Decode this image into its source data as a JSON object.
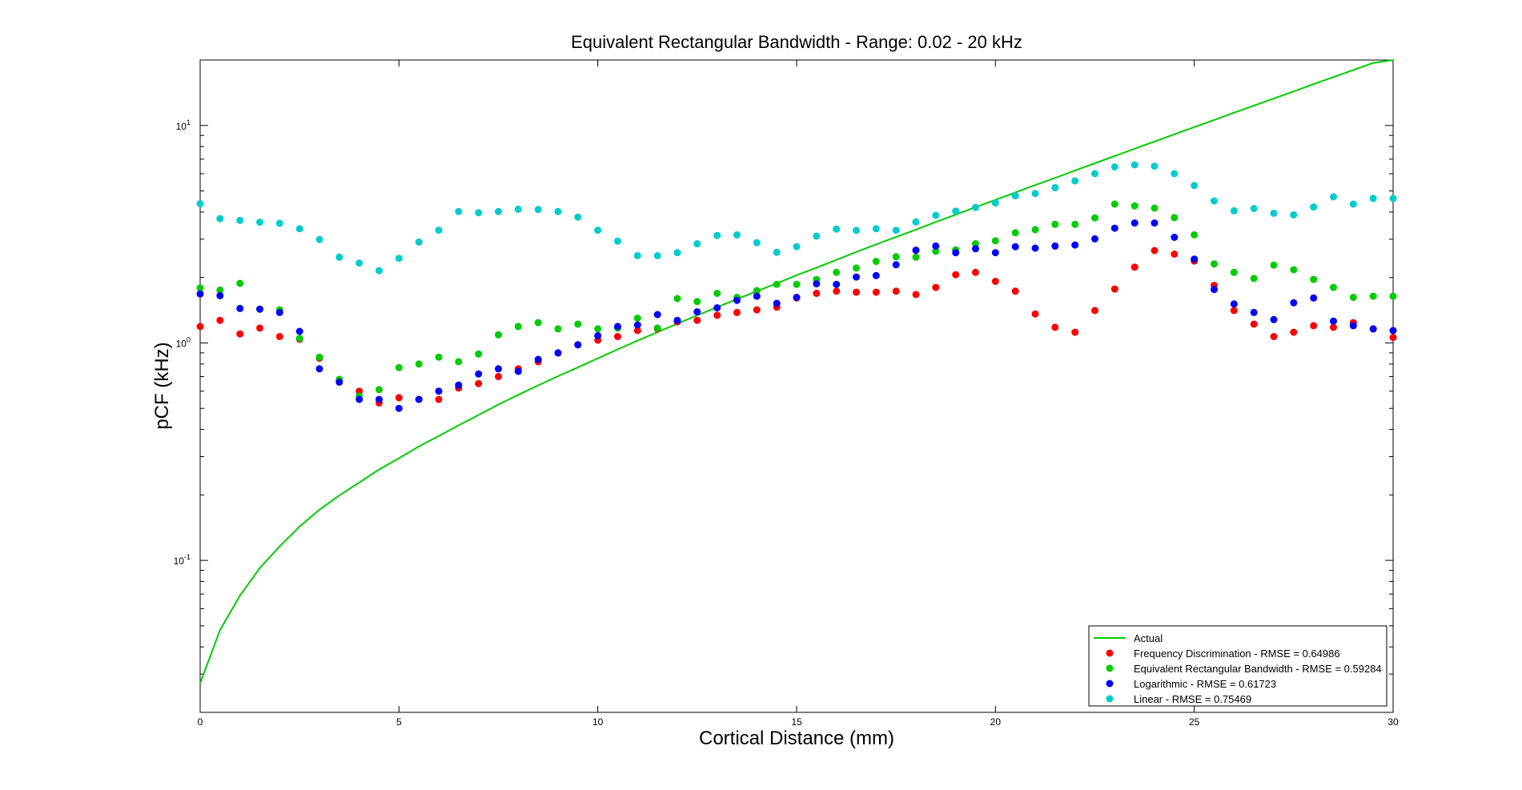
{
  "chart_data": {
    "type": "scatter",
    "title": "Equivalent Rectangular Bandwidth - Range: 0.02 - 20 kHz",
    "xlabel": "Cortical Distance (mm)",
    "ylabel": "pCF (kHz)",
    "xlim": [
      0,
      30
    ],
    "ylim": [
      0.02,
      20
    ],
    "yscale": "log",
    "grid": false,
    "legend_position": "bottom-right",
    "x_ticks": [
      "0",
      "5",
      "10",
      "15",
      "20",
      "25",
      "30"
    ],
    "y_tick_bases": [
      "10",
      "10",
      "10"
    ],
    "y_tick_exponents": [
      "-1",
      "0",
      "1"
    ],
    "x": [
      0,
      0.5,
      1.0,
      1.5,
      2.0,
      2.5,
      3.0,
      3.5,
      4.0,
      4.5,
      5.0,
      5.5,
      6.0,
      6.5,
      7.0,
      7.5,
      8.0,
      8.5,
      9.0,
      9.5,
      10.0,
      10.5,
      11.0,
      11.5,
      12.0,
      12.5,
      13.0,
      13.5,
      14.0,
      14.5,
      15.0,
      15.5,
      16.0,
      16.5,
      17.0,
      17.5,
      18.0,
      18.5,
      19.0,
      19.5,
      20.0,
      20.5,
      21.0,
      21.5,
      22.0,
      22.5,
      23.0,
      23.5,
      24.0,
      24.5,
      25.0,
      25.5,
      26.0,
      26.5,
      27.0,
      27.5,
      28.0,
      28.5,
      29.0,
      29.5,
      30.0
    ],
    "series": [
      {
        "name": "Actual",
        "kind": "line",
        "color": "#00cc00",
        "x": [
          0,
          0.5,
          1,
          1.5,
          2,
          2.5,
          3,
          3.5,
          4,
          4.5,
          5,
          5.5,
          6,
          6.5,
          7,
          7.5,
          8,
          8.5,
          9,
          9.5,
          10,
          10.5,
          11,
          11.5,
          12,
          12.5,
          13,
          13.5,
          14,
          14.5,
          15,
          15.5,
          16,
          16.5,
          17,
          17.5,
          18,
          18.5,
          19,
          19.5,
          20,
          20.5,
          21,
          21.5,
          22,
          22.5,
          23,
          23.5,
          24,
          24.5,
          25,
          25.5,
          26,
          26.5,
          27,
          27.5,
          28,
          28.5,
          29,
          29.5,
          30
        ],
        "values": [
          0.0272,
          0.0478,
          0.0688,
          0.0922,
          0.116,
          0.143,
          0.171,
          0.199,
          0.228,
          0.262,
          0.295,
          0.334,
          0.373,
          0.418,
          0.466,
          0.521,
          0.577,
          0.638,
          0.703,
          0.771,
          0.85,
          0.934,
          1.024,
          1.121,
          1.226,
          1.339,
          1.46,
          1.59,
          1.73,
          1.88,
          2.05,
          2.22,
          2.41,
          2.62,
          2.84,
          3.07,
          3.32,
          3.6,
          3.89,
          4.21,
          4.55,
          4.92,
          5.32,
          5.74,
          6.21,
          6.7,
          7.24,
          7.82,
          8.44,
          9.11,
          9.83,
          10.6,
          11.45,
          12.35,
          13.3,
          14.35,
          15.5,
          16.7,
          18.0,
          19.4,
          20.0
        ]
      },
      {
        "name": "Frequency Discrimination - RMSE = 0.64986",
        "kind": "points",
        "color": "#ff0000",
        "values": [
          1.19,
          1.27,
          1.1,
          1.17,
          1.07,
          1.04,
          0.85,
          0.67,
          0.6,
          0.53,
          0.56,
          0.55,
          0.55,
          0.62,
          0.65,
          0.7,
          0.76,
          0.82,
          0.9,
          0.98,
          1.03,
          1.07,
          1.14,
          1.16,
          1.25,
          1.27,
          1.34,
          1.38,
          1.42,
          1.46,
          1.61,
          1.69,
          1.73,
          1.71,
          1.71,
          1.73,
          1.67,
          1.8,
          2.06,
          2.11,
          1.92,
          1.73,
          1.36,
          1.18,
          1.12,
          1.41,
          1.77,
          2.23,
          2.66,
          2.56,
          2.38,
          1.84,
          1.41,
          1.22,
          1.07,
          1.12,
          1.2,
          1.18,
          1.24,
          1.16,
          1.06
        ]
      },
      {
        "name": "Equivalent Rectangular Bandwidth - RMSE = 0.59284",
        "kind": "points",
        "color": "#00cc00",
        "values": [
          1.79,
          1.75,
          1.88,
          1.43,
          1.42,
          1.05,
          0.86,
          0.68,
          0.57,
          0.61,
          0.77,
          0.8,
          0.86,
          0.82,
          0.89,
          1.09,
          1.19,
          1.24,
          1.16,
          1.22,
          1.16,
          1.17,
          1.3,
          1.17,
          1.6,
          1.55,
          1.69,
          1.62,
          1.74,
          1.86,
          1.86,
          1.96,
          2.11,
          2.21,
          2.37,
          2.49,
          2.48,
          2.64,
          2.68,
          2.86,
          2.95,
          3.21,
          3.32,
          3.51,
          3.51,
          3.76,
          4.35,
          4.27,
          4.17,
          3.77,
          3.14,
          2.31,
          2.11,
          1.98,
          2.28,
          2.17,
          1.96,
          1.8,
          1.62,
          1.64,
          1.64
        ]
      },
      {
        "name": "Logarithmic - RMSE = 0.61723",
        "kind": "points",
        "color": "#0000ff",
        "values": [
          1.68,
          1.65,
          1.44,
          1.43,
          1.38,
          1.13,
          0.76,
          0.66,
          0.55,
          0.55,
          0.5,
          0.55,
          0.6,
          0.64,
          0.72,
          0.76,
          0.74,
          0.84,
          0.9,
          0.98,
          1.08,
          1.19,
          1.21,
          1.35,
          1.27,
          1.39,
          1.45,
          1.57,
          1.64,
          1.52,
          1.62,
          1.87,
          1.86,
          2.01,
          2.04,
          2.29,
          2.67,
          2.79,
          2.6,
          2.71,
          2.6,
          2.77,
          2.73,
          2.79,
          2.82,
          3.01,
          3.37,
          3.56,
          3.56,
          3.06,
          2.43,
          1.76,
          1.51,
          1.38,
          1.28,
          1.53,
          1.61,
          1.26,
          1.2,
          1.16,
          1.14
        ]
      },
      {
        "name": "Linear - RMSE = 0.75469",
        "kind": "points",
        "color": "#00cccc",
        "values": [
          4.37,
          3.73,
          3.66,
          3.59,
          3.55,
          3.35,
          2.99,
          2.48,
          2.33,
          2.15,
          2.45,
          2.91,
          3.3,
          4.02,
          3.97,
          4.02,
          4.12,
          4.11,
          4.02,
          3.79,
          3.3,
          2.94,
          2.52,
          2.52,
          2.6,
          2.86,
          3.12,
          3.14,
          2.89,
          2.61,
          2.77,
          3.1,
          3.34,
          3.29,
          3.35,
          3.3,
          3.6,
          3.86,
          4.04,
          4.2,
          4.4,
          4.75,
          4.87,
          5.18,
          5.56,
          6.0,
          6.45,
          6.59,
          6.5,
          6.0,
          5.3,
          4.5,
          4.05,
          4.15,
          3.95,
          3.88,
          4.22,
          4.7,
          4.35,
          4.62,
          4.62
        ]
      }
    ]
  }
}
